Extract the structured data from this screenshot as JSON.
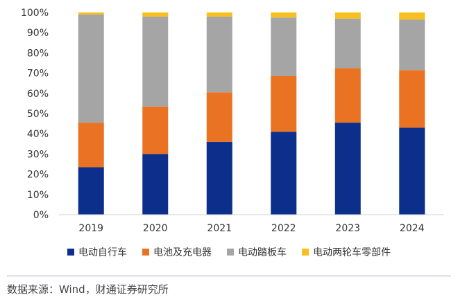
{
  "chart_data": {
    "type": "bar",
    "stacked": true,
    "categories": [
      "2019",
      "2020",
      "2021",
      "2022",
      "2023",
      "2024"
    ],
    "series": [
      {
        "name": "电动自行车",
        "color": "#0b2f8a",
        "values": [
          23.5,
          30,
          36,
          41,
          45.5,
          43
        ]
      },
      {
        "name": "电池及充电器",
        "color": "#ea7223",
        "values": [
          22,
          23.5,
          24.5,
          27.5,
          27,
          28.5
        ]
      },
      {
        "name": "电动踏板车",
        "color": "#a5a5a5",
        "values": [
          53.5,
          44.5,
          37.5,
          29,
          24.5,
          25
        ]
      },
      {
        "name": "电动两轮车零部件",
        "color": "#f7c01c",
        "values": [
          1,
          2,
          2,
          2.5,
          3,
          3.5
        ]
      }
    ],
    "y_ticks": [
      "0%",
      "10%",
      "20%",
      "30%",
      "40%",
      "50%",
      "60%",
      "70%",
      "80%",
      "90%",
      "100%"
    ],
    "ylim": [
      0,
      100
    ],
    "legend_position": "bottom"
  },
  "source_text": "数据来源：Wind，财通证券研究所"
}
